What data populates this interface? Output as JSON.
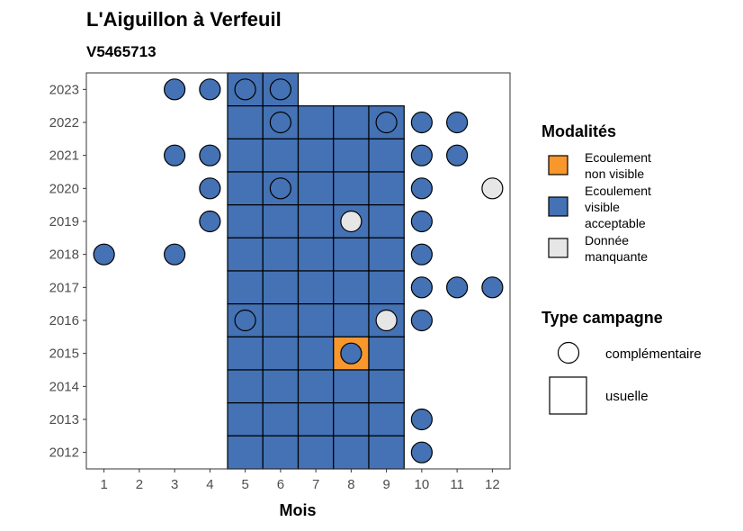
{
  "chart_data": {
    "type": "heatmap",
    "title": "L'Aiguillon à Verfeuil",
    "subtitle": "V5465713",
    "xlabel": "Mois",
    "ylabel": "",
    "x_ticks": [
      "1",
      "2",
      "3",
      "4",
      "5",
      "6",
      "7",
      "8",
      "9",
      "10",
      "11",
      "12"
    ],
    "y_ticks": [
      "2023",
      "2022",
      "2021",
      "2020",
      "2019",
      "2018",
      "2017",
      "2016",
      "2015",
      "2014",
      "2013",
      "2012"
    ],
    "xlim": [
      0.5,
      12.5
    ],
    "ylim": [
      2011.5,
      2023.5
    ],
    "colors": {
      "non_visible": "#F7972C",
      "visible": "#4472B4",
      "missing": "#E6E6E6"
    },
    "legend_modalites": {
      "title": "Modalités",
      "items": [
        {
          "key": "non_visible",
          "lines": [
            "Ecoulement",
            "non visible"
          ]
        },
        {
          "key": "visible",
          "lines": [
            "Ecoulement",
            "visible",
            "acceptable"
          ]
        },
        {
          "key": "missing",
          "lines": [
            "Donnée",
            "manquante"
          ]
        }
      ]
    },
    "legend_campagne": {
      "title": "Type campagne",
      "items": [
        {
          "shape": "circle",
          "label": "complémentaire"
        },
        {
          "shape": "square",
          "label": "usuelle"
        }
      ]
    },
    "usuelle": [
      {
        "year": 2023,
        "month": 5,
        "m": "visible"
      },
      {
        "year": 2023,
        "month": 6,
        "m": "visible"
      },
      {
        "year": 2022,
        "month": 5,
        "m": "visible"
      },
      {
        "year": 2022,
        "month": 6,
        "m": "visible"
      },
      {
        "year": 2022,
        "month": 7,
        "m": "visible"
      },
      {
        "year": 2022,
        "month": 8,
        "m": "visible"
      },
      {
        "year": 2022,
        "month": 9,
        "m": "visible"
      },
      {
        "year": 2021,
        "month": 5,
        "m": "visible"
      },
      {
        "year": 2021,
        "month": 6,
        "m": "visible"
      },
      {
        "year": 2021,
        "month": 7,
        "m": "visible"
      },
      {
        "year": 2021,
        "month": 8,
        "m": "visible"
      },
      {
        "year": 2021,
        "month": 9,
        "m": "visible"
      },
      {
        "year": 2020,
        "month": 5,
        "m": "visible"
      },
      {
        "year": 2020,
        "month": 6,
        "m": "visible"
      },
      {
        "year": 2020,
        "month": 7,
        "m": "visible"
      },
      {
        "year": 2020,
        "month": 8,
        "m": "visible"
      },
      {
        "year": 2020,
        "month": 9,
        "m": "visible"
      },
      {
        "year": 2019,
        "month": 5,
        "m": "visible"
      },
      {
        "year": 2019,
        "month": 6,
        "m": "visible"
      },
      {
        "year": 2019,
        "month": 7,
        "m": "visible"
      },
      {
        "year": 2019,
        "month": 8,
        "m": "visible"
      },
      {
        "year": 2019,
        "month": 9,
        "m": "visible"
      },
      {
        "year": 2018,
        "month": 5,
        "m": "visible"
      },
      {
        "year": 2018,
        "month": 6,
        "m": "visible"
      },
      {
        "year": 2018,
        "month": 7,
        "m": "visible"
      },
      {
        "year": 2018,
        "month": 8,
        "m": "visible"
      },
      {
        "year": 2018,
        "month": 9,
        "m": "visible"
      },
      {
        "year": 2017,
        "month": 5,
        "m": "visible"
      },
      {
        "year": 2017,
        "month": 6,
        "m": "visible"
      },
      {
        "year": 2017,
        "month": 7,
        "m": "visible"
      },
      {
        "year": 2017,
        "month": 8,
        "m": "visible"
      },
      {
        "year": 2017,
        "month": 9,
        "m": "visible"
      },
      {
        "year": 2016,
        "month": 5,
        "m": "visible"
      },
      {
        "year": 2016,
        "month": 6,
        "m": "visible"
      },
      {
        "year": 2016,
        "month": 7,
        "m": "visible"
      },
      {
        "year": 2016,
        "month": 8,
        "m": "visible"
      },
      {
        "year": 2016,
        "month": 9,
        "m": "visible"
      },
      {
        "year": 2015,
        "month": 5,
        "m": "visible"
      },
      {
        "year": 2015,
        "month": 6,
        "m": "visible"
      },
      {
        "year": 2015,
        "month": 7,
        "m": "visible"
      },
      {
        "year": 2015,
        "month": 8,
        "m": "non_visible"
      },
      {
        "year": 2015,
        "month": 9,
        "m": "visible"
      },
      {
        "year": 2014,
        "month": 5,
        "m": "visible"
      },
      {
        "year": 2014,
        "month": 6,
        "m": "visible"
      },
      {
        "year": 2014,
        "month": 7,
        "m": "visible"
      },
      {
        "year": 2014,
        "month": 8,
        "m": "visible"
      },
      {
        "year": 2014,
        "month": 9,
        "m": "visible"
      },
      {
        "year": 2013,
        "month": 5,
        "m": "visible"
      },
      {
        "year": 2013,
        "month": 6,
        "m": "visible"
      },
      {
        "year": 2013,
        "month": 7,
        "m": "visible"
      },
      {
        "year": 2013,
        "month": 8,
        "m": "visible"
      },
      {
        "year": 2013,
        "month": 9,
        "m": "visible"
      },
      {
        "year": 2012,
        "month": 5,
        "m": "visible"
      },
      {
        "year": 2012,
        "month": 6,
        "m": "visible"
      },
      {
        "year": 2012,
        "month": 7,
        "m": "visible"
      },
      {
        "year": 2012,
        "month": 8,
        "m": "visible"
      },
      {
        "year": 2012,
        "month": 9,
        "m": "visible"
      }
    ],
    "complementaire": [
      {
        "year": 2023,
        "month": 3,
        "m": "visible"
      },
      {
        "year": 2023,
        "month": 4,
        "m": "visible"
      },
      {
        "year": 2023,
        "month": 5,
        "m": "visible"
      },
      {
        "year": 2023,
        "month": 6,
        "m": "visible"
      },
      {
        "year": 2022,
        "month": 6,
        "m": "visible"
      },
      {
        "year": 2022,
        "month": 9,
        "m": "visible"
      },
      {
        "year": 2022,
        "month": 10,
        "m": "visible"
      },
      {
        "year": 2022,
        "month": 11,
        "m": "visible"
      },
      {
        "year": 2021,
        "month": 3,
        "m": "visible"
      },
      {
        "year": 2021,
        "month": 4,
        "m": "visible"
      },
      {
        "year": 2021,
        "month": 10,
        "m": "visible"
      },
      {
        "year": 2021,
        "month": 11,
        "m": "visible"
      },
      {
        "year": 2020,
        "month": 4,
        "m": "visible"
      },
      {
        "year": 2020,
        "month": 6,
        "m": "visible"
      },
      {
        "year": 2020,
        "month": 10,
        "m": "visible"
      },
      {
        "year": 2020,
        "month": 12,
        "m": "missing"
      },
      {
        "year": 2019,
        "month": 4,
        "m": "visible"
      },
      {
        "year": 2019,
        "month": 8,
        "m": "missing"
      },
      {
        "year": 2019,
        "month": 10,
        "m": "visible"
      },
      {
        "year": 2018,
        "month": 1,
        "m": "visible"
      },
      {
        "year": 2018,
        "month": 3,
        "m": "visible"
      },
      {
        "year": 2018,
        "month": 10,
        "m": "visible"
      },
      {
        "year": 2017,
        "month": 10,
        "m": "visible"
      },
      {
        "year": 2017,
        "month": 11,
        "m": "visible"
      },
      {
        "year": 2017,
        "month": 12,
        "m": "visible"
      },
      {
        "year": 2016,
        "month": 5,
        "m": "visible"
      },
      {
        "year": 2016,
        "month": 9,
        "m": "missing"
      },
      {
        "year": 2016,
        "month": 10,
        "m": "visible"
      },
      {
        "year": 2015,
        "month": 8,
        "m": "visible"
      },
      {
        "year": 2013,
        "month": 10,
        "m": "visible"
      },
      {
        "year": 2012,
        "month": 10,
        "m": "visible"
      }
    ]
  }
}
